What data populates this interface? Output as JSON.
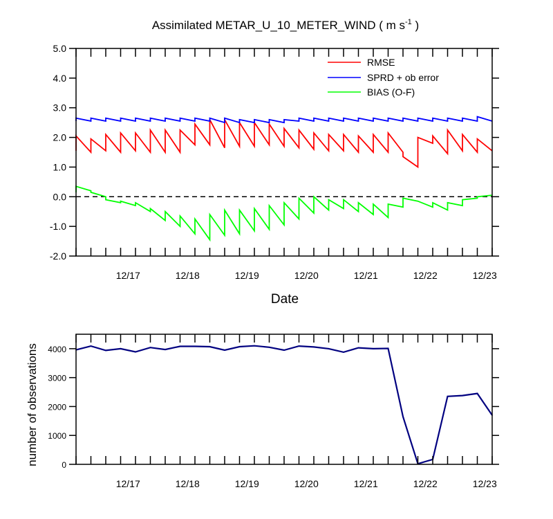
{
  "chart_data": [
    {
      "type": "line",
      "title_main": "Assimilated METAR_U_10_METER_WIND ( m s",
      "title_sup": "-1",
      "title_close": " )",
      "xlabel": "Date",
      "ylabel": "",
      "ylim": [
        -2.0,
        5.0
      ],
      "xlim": [
        0,
        28
      ],
      "x_unit": "6-hour analysis cycles from the first cycle",
      "x_tick_values": [
        3.5,
        7.5,
        11.5,
        15.5,
        19.5,
        23.5,
        27.5
      ],
      "x_tick_labels": [
        "12/17",
        "12/18",
        "12/19",
        "12/20",
        "12/21",
        "12/22",
        "12/23"
      ],
      "y_tick_values": [
        -2.0,
        -1.0,
        0.0,
        1.0,
        2.0,
        3.0,
        4.0,
        5.0
      ],
      "y_tick_labels": [
        "-2.0",
        "-1.0",
        "0.0",
        "1.0",
        "2.0",
        "3.0",
        "4.0",
        "5.0"
      ],
      "zero_line": true,
      "legend_position": "top-right",
      "series": [
        {
          "name": "RMSE",
          "color": "#ff0000",
          "prior": [
            1.55,
            1.5,
            1.55,
            1.5,
            1.55,
            1.5,
            1.5,
            1.5,
            1.75,
            1.75,
            1.65,
            1.7,
            1.7,
            1.75,
            1.7,
            1.65,
            1.6,
            1.55,
            1.55,
            1.5,
            1.5,
            1.5,
            1.5,
            1.0,
            1.8,
            1.45,
            1.55,
            1.5,
            1.55
          ],
          "posterior": [
            2.05,
            1.95,
            2.1,
            2.15,
            2.15,
            2.25,
            2.25,
            2.25,
            2.45,
            2.6,
            2.6,
            2.5,
            2.5,
            2.45,
            2.3,
            2.25,
            2.15,
            2.1,
            2.1,
            2.05,
            2.1,
            2.15,
            1.35,
            2.0,
            2.05,
            2.25,
            2.1,
            1.95
          ]
        },
        {
          "name": "SPRD + ob error",
          "color": "#0000ff",
          "prior": [
            2.55,
            2.55,
            2.55,
            2.55,
            2.55,
            2.55,
            2.55,
            2.55,
            2.55,
            2.55,
            2.5,
            2.5,
            2.5,
            2.5,
            2.5,
            2.55,
            2.55,
            2.55,
            2.55,
            2.55,
            2.55,
            2.55,
            2.55,
            2.55,
            2.55,
            2.55,
            2.55,
            2.55,
            2.55
          ],
          "posterior": [
            2.65,
            2.65,
            2.65,
            2.65,
            2.65,
            2.65,
            2.65,
            2.65,
            2.65,
            2.65,
            2.65,
            2.6,
            2.6,
            2.6,
            2.6,
            2.65,
            2.65,
            2.65,
            2.65,
            2.65,
            2.65,
            2.65,
            2.65,
            2.65,
            2.65,
            2.65,
            2.65,
            2.7
          ]
        },
        {
          "name": "BIAS (O-F)",
          "color": "#00ff00",
          "prior": [
            0.15,
            0.2,
            0.0,
            -0.2,
            -0.3,
            -0.5,
            -0.8,
            -1.0,
            -1.25,
            -1.45,
            -1.3,
            -1.25,
            -1.15,
            -1.1,
            -0.95,
            -0.75,
            -0.55,
            -0.45,
            -0.4,
            -0.5,
            -0.6,
            -0.7,
            -0.35,
            -0.15,
            -0.35,
            -0.45,
            -0.3,
            -0.05,
            0.05
          ],
          "posterior": [
            0.35,
            0.15,
            -0.1,
            -0.15,
            -0.2,
            -0.4,
            -0.5,
            -0.65,
            -0.75,
            -0.6,
            -0.45,
            -0.45,
            -0.4,
            -0.3,
            -0.2,
            -0.05,
            0.0,
            -0.1,
            -0.1,
            -0.2,
            -0.25,
            -0.25,
            -0.05,
            -0.15,
            -0.2,
            -0.2,
            -0.1,
            0.0
          ]
        }
      ]
    },
    {
      "type": "line",
      "title": "",
      "xlabel": "",
      "ylabel": "number of observations",
      "ylim": [
        0,
        4500
      ],
      "xlim": [
        0,
        28
      ],
      "x_tick_values": [
        3.5,
        7.5,
        11.5,
        15.5,
        19.5,
        23.5,
        27.5
      ],
      "x_tick_labels": [
        "12/17",
        "12/18",
        "12/19",
        "12/20",
        "12/21",
        "12/22",
        "12/23"
      ],
      "y_tick_values": [
        0,
        1000,
        2000,
        3000,
        4000
      ],
      "y_tick_labels": [
        "0",
        "1000",
        "2000",
        "3000",
        "4000"
      ],
      "series": [
        {
          "name": "number of observations",
          "color": "#000080",
          "x": [
            0,
            1,
            2,
            3,
            4,
            5,
            6,
            7,
            8,
            9,
            10,
            11,
            12,
            13,
            14,
            15,
            16,
            17,
            18,
            19,
            20,
            21,
            22,
            23,
            24,
            25,
            26,
            27,
            28
          ],
          "values": [
            3960,
            4090,
            3940,
            4000,
            3890,
            4040,
            3970,
            4080,
            4080,
            4070,
            3950,
            4070,
            4100,
            4050,
            3950,
            4090,
            4060,
            4000,
            3880,
            4030,
            4000,
            4010,
            1650,
            20,
            170,
            2350,
            2380,
            2450,
            1700
          ]
        }
      ]
    }
  ],
  "legend": {
    "rmse": "RMSE",
    "sprd": "SPRD + ob error",
    "bias": "BIAS (O-F)"
  }
}
